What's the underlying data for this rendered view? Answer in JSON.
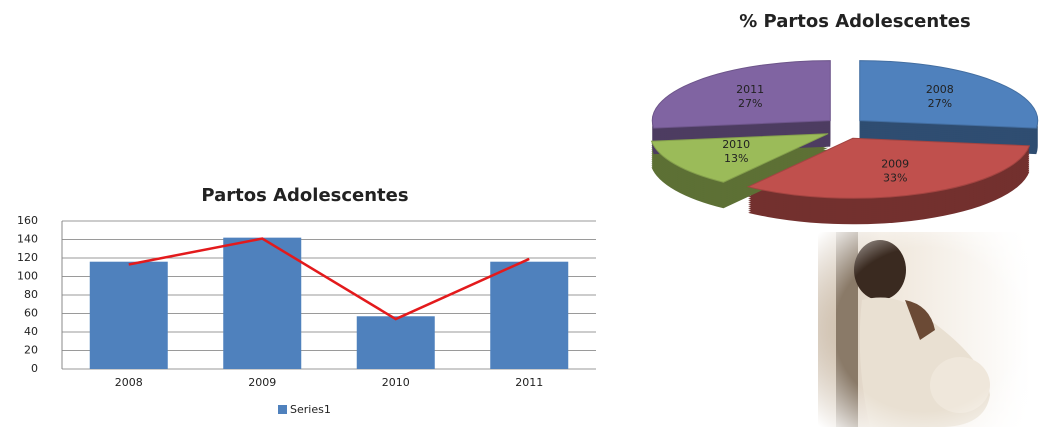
{
  "chart_data": [
    {
      "type": "bar",
      "title": "Partos Adolescentes",
      "categories": [
        "2008",
        "2009",
        "2010",
        "2011"
      ],
      "series": [
        {
          "name": "Series1",
          "type": "bar",
          "color": "#4f81bd",
          "values": [
            116,
            142,
            57,
            116
          ]
        },
        {
          "type": "line",
          "color": "#e31a1c",
          "values": [
            113,
            141,
            54,
            119
          ]
        }
      ],
      "ylim": [
        0,
        160
      ],
      "yticks": [
        0,
        20,
        40,
        60,
        80,
        100,
        120,
        140,
        160
      ],
      "grid": true,
      "legend": "bottom"
    },
    {
      "type": "pie",
      "title": "% Partos Adolescentes",
      "categories": [
        "2008",
        "2009",
        "2010",
        "2011"
      ],
      "values": [
        27,
        33,
        13,
        27
      ],
      "value_labels": [
        "27%",
        "33%",
        "13%",
        "27%"
      ],
      "colors": [
        "#4f81bd",
        "#c0504d",
        "#9bbb59",
        "#8064a2"
      ]
    }
  ]
}
